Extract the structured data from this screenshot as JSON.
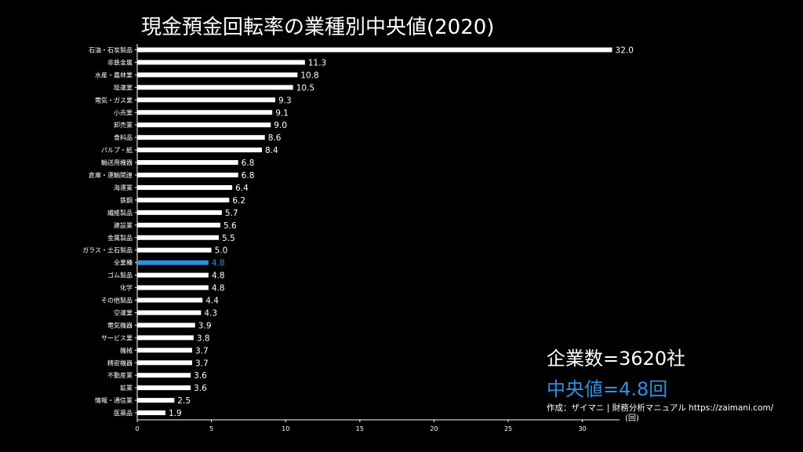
{
  "title": "現金預金回転率の業種別中央値(2020)",
  "company_count_label": "企業数=3620社",
  "median_label": "中央値=4.8回",
  "credit": "作成：ザイマニ | 財務分析マニュアル https://zaimani.com/",
  "colors": {
    "background": "#000000",
    "bar": "#ffffff",
    "highlight": "#2f8fe0",
    "text": "#ffffff"
  },
  "chart_data": {
    "type": "bar",
    "orientation": "horizontal",
    "title": "現金預金回転率の業種別中央値(2020)",
    "xlabel": "(回)",
    "ylabel": "",
    "xlim": [
      0,
      32.5
    ],
    "xticks": [
      0,
      5,
      10,
      15,
      20,
      25,
      30
    ],
    "highlight_category": "全業種",
    "categories": [
      "石油・石炭製品",
      "非鉄金属",
      "水産・農林業",
      "陸運業",
      "電気・ガス業",
      "小売業",
      "卸売業",
      "食料品",
      "パルプ・紙",
      "輸送用機器",
      "倉庫・運輸関連",
      "海運業",
      "鉄鋼",
      "繊維製品",
      "建設業",
      "金属製品",
      "ガラス・土石製品",
      "全業種",
      "ゴム製品",
      "化学",
      "その他製品",
      "空運業",
      "電気機器",
      "サービス業",
      "機械",
      "精密機器",
      "不動産業",
      "鉱業",
      "情報・通信業",
      "医薬品"
    ],
    "values": [
      32.0,
      11.3,
      10.8,
      10.5,
      9.3,
      9.1,
      9.0,
      8.6,
      8.4,
      6.8,
      6.8,
      6.4,
      6.2,
      5.7,
      5.6,
      5.5,
      5.0,
      4.8,
      4.8,
      4.8,
      4.4,
      4.3,
      3.9,
      3.8,
      3.7,
      3.7,
      3.6,
      3.6,
      2.5,
      1.9
    ],
    "value_labels": [
      "32.0",
      "11.3",
      "10.8",
      "10.5",
      "9.3",
      "9.1",
      "9.0",
      "8.6",
      "8.4",
      "6.8",
      "6.8",
      "6.4",
      "6.2",
      "5.7",
      "5.6",
      "5.5",
      "5.0",
      "4.8",
      "4.8",
      "4.8",
      "4.4",
      "4.3",
      "3.9",
      "3.8",
      "3.7",
      "3.7",
      "3.6",
      "3.6",
      "2.5",
      "1.9"
    ]
  }
}
